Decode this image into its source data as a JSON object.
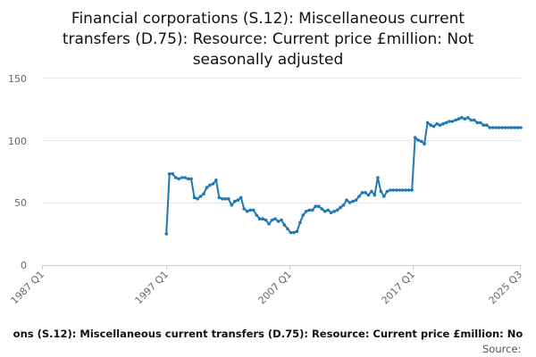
{
  "chart_data": {
    "type": "line",
    "title_lines": [
      "Financial corporations (S.12): Miscellaneous current",
      "transfers (D.75): Resource: Current price £million: Not",
      "seasonally adjusted"
    ],
    "xlabel": "",
    "ylabel": "",
    "x_tick_labels": [
      "1987 Q1",
      "1997 Q1",
      "2007 Q1",
      "2017 Q1",
      "2025 Q3"
    ],
    "y_tick_labels": [
      "0",
      "50",
      "100",
      "150"
    ],
    "ylim": [
      0,
      150
    ],
    "xlim": [
      "1987 Q1",
      "2025 Q3"
    ],
    "grid": "horizontal",
    "legend_position": "bottom",
    "legend_text": "ons (S.12): Miscellaneous current transfers (D.75): Resource: Current price £million: No",
    "source_label": "Source:",
    "series": [
      {
        "color": "#1f77b4",
        "x": [
          "1997 Q1",
          "1997 Q2",
          "1997 Q3",
          "1997 Q4",
          "1998 Q1",
          "1998 Q2",
          "1998 Q3",
          "1998 Q4",
          "1999 Q1",
          "1999 Q2",
          "1999 Q3",
          "1999 Q4",
          "2000 Q1",
          "2000 Q2",
          "2000 Q3",
          "2000 Q4",
          "2001 Q1",
          "2001 Q2",
          "2001 Q3",
          "2001 Q4",
          "2002 Q1",
          "2002 Q2",
          "2002 Q3",
          "2002 Q4",
          "2003 Q1",
          "2003 Q2",
          "2003 Q3",
          "2003 Q4",
          "2004 Q1",
          "2004 Q2",
          "2004 Q3",
          "2004 Q4",
          "2005 Q1",
          "2005 Q2",
          "2005 Q3",
          "2005 Q4",
          "2006 Q1",
          "2006 Q2",
          "2006 Q3",
          "2006 Q4",
          "2007 Q1",
          "2007 Q2",
          "2007 Q3",
          "2007 Q4",
          "2008 Q1",
          "2008 Q2",
          "2008 Q3",
          "2008 Q4",
          "2009 Q1",
          "2009 Q2",
          "2009 Q3",
          "2009 Q4",
          "2010 Q1",
          "2010 Q2",
          "2010 Q3",
          "2010 Q4",
          "2011 Q1",
          "2011 Q2",
          "2011 Q3",
          "2011 Q4",
          "2012 Q1",
          "2012 Q2",
          "2012 Q3",
          "2012 Q4",
          "2013 Q1",
          "2013 Q2",
          "2013 Q3",
          "2013 Q4",
          "2014 Q1",
          "2014 Q2",
          "2014 Q3",
          "2014 Q4",
          "2015 Q1",
          "2015 Q2",
          "2015 Q3",
          "2015 Q4",
          "2016 Q1",
          "2016 Q2",
          "2016 Q3",
          "2016 Q4",
          "2017 Q1",
          "2017 Q2",
          "2017 Q3",
          "2017 Q4",
          "2018 Q1",
          "2018 Q2",
          "2018 Q3",
          "2018 Q4",
          "2019 Q1",
          "2019 Q2",
          "2019 Q3",
          "2019 Q4",
          "2020 Q1",
          "2020 Q2",
          "2020 Q3",
          "2020 Q4",
          "2021 Q1",
          "2021 Q2",
          "2021 Q3",
          "2021 Q4",
          "2022 Q1",
          "2022 Q2",
          "2022 Q3",
          "2022 Q4",
          "2023 Q1",
          "2023 Q2",
          "2023 Q3",
          "2023 Q4",
          "2024 Q1",
          "2024 Q2",
          "2024 Q3",
          "2024 Q4",
          "2025 Q1",
          "2025 Q2",
          "2025 Q3"
        ],
        "values": [
          25,
          73,
          73,
          70,
          69,
          70,
          70,
          69,
          69,
          54,
          53,
          55,
          57,
          62,
          64,
          65,
          68,
          54,
          53,
          53,
          53,
          48,
          51,
          52,
          54,
          45,
          43,
          44,
          44,
          40,
          37,
          37,
          36,
          33,
          36,
          37,
          35,
          36,
          32,
          29,
          26,
          26,
          27,
          34,
          40,
          43,
          44,
          44,
          47,
          47,
          45,
          43,
          44,
          42,
          43,
          44,
          46,
          48,
          52,
          50,
          51,
          52,
          55,
          58,
          58,
          56,
          59,
          56,
          70,
          59,
          55,
          59,
          60,
          60,
          60,
          60,
          60,
          60,
          60,
          60,
          102,
          100,
          99,
          97,
          114,
          112,
          111,
          113,
          112,
          113,
          114,
          115,
          115,
          116,
          117,
          118,
          117,
          118,
          116,
          116,
          114,
          114,
          112,
          112,
          110,
          110,
          110,
          110,
          110,
          110,
          110,
          110,
          110,
          110,
          110
        ]
      }
    ]
  }
}
